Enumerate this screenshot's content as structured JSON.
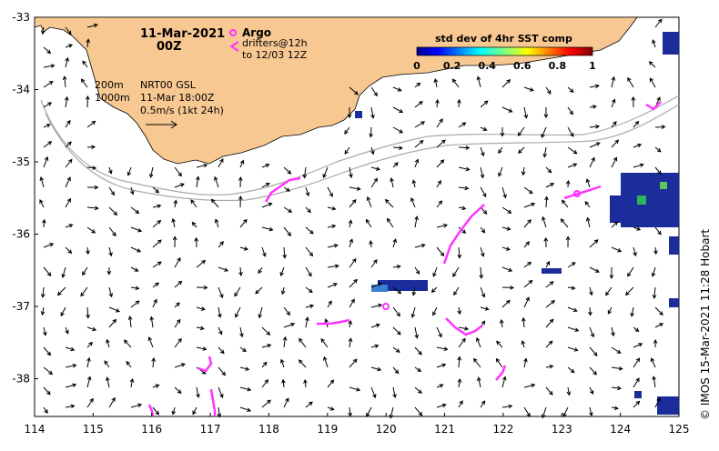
{
  "map": {
    "title_date": "11-Mar-2021",
    "title_time": "00Z",
    "legend": {
      "argo_label": "Argo",
      "drifters_label": "drifters@12h",
      "drifters_sub": "to 12/03 12Z"
    },
    "contours": {
      "label_200": "200m",
      "label_1000": "1000m"
    },
    "current_info": {
      "product": "NRT00 GSL",
      "date": "11-Mar 18:00Z",
      "scale": "0.5m/s (1kt 24h)"
    },
    "colorbar": {
      "title": "std dev of 4hr SST comp",
      "ticks": [
        "0",
        "0.2",
        "0.4",
        "0.6",
        "0.8",
        "1"
      ]
    },
    "x_axis_ticks": [
      "114",
      "115",
      "116",
      "117",
      "118",
      "119",
      "120",
      "121",
      "122",
      "123",
      "124",
      "125"
    ],
    "y_axis_ticks": [
      "-33",
      "-34",
      "-35",
      "-36",
      "-37",
      "-38"
    ],
    "credit": "© IMOS 15-Mar-2021 11:28 Hobart",
    "colors": {
      "land": "#f8c893",
      "drifter": "#ff33ff",
      "sst_blue": "#1a2d9a",
      "contour": "#aaaaaa"
    }
  }
}
